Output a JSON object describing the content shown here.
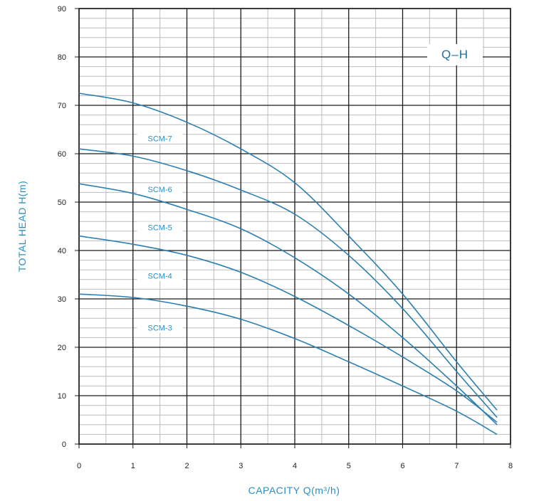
{
  "chart_data": {
    "type": "line",
    "tag": "Q–H",
    "xlabel": "CAPACITY Q(m³/h)",
    "ylabel": "TOTAL HEAD H(m)",
    "xlim": [
      0,
      8
    ],
    "ylim": [
      0,
      90
    ],
    "xticks": [
      0,
      1,
      2,
      3,
      4,
      5,
      6,
      7,
      8
    ],
    "yticks": [
      0,
      10,
      20,
      30,
      40,
      50,
      60,
      70,
      80,
      90
    ],
    "grid": true,
    "series": [
      {
        "name": "SCM-7",
        "label_x": 1.5,
        "x": [
          0,
          1,
          2,
          3,
          4,
          5,
          6,
          7,
          7.75
        ],
        "y": [
          72.5,
          70.5,
          66.5,
          61,
          54,
          43,
          31,
          17,
          7
        ]
      },
      {
        "name": "SCM-6",
        "label_x": 1.5,
        "x": [
          0,
          1,
          2,
          3,
          4,
          5,
          6,
          7,
          7.75
        ],
        "y": [
          61,
          59.5,
          56.5,
          52.5,
          47.5,
          39,
          28,
          15,
          5.5
        ]
      },
      {
        "name": "SCM-5",
        "label_x": 1.5,
        "x": [
          0,
          1,
          2,
          3,
          4,
          5,
          6,
          7,
          7.75
        ],
        "y": [
          53.8,
          51.8,
          48.5,
          44.5,
          38.5,
          31,
          22,
          12,
          4
        ]
      },
      {
        "name": "SCM-4",
        "label_x": 1.5,
        "x": [
          0,
          1,
          2,
          3,
          4,
          5,
          6,
          7,
          7.75
        ],
        "y": [
          43,
          41.3,
          39,
          35.5,
          30.5,
          24.5,
          18,
          11,
          4.5
        ]
      },
      {
        "name": "SCM-3",
        "label_x": 1.5,
        "x": [
          0,
          1,
          2,
          3,
          4,
          5,
          6,
          7,
          7.75
        ],
        "y": [
          31,
          30.3,
          28.5,
          25.8,
          21.8,
          17,
          12,
          6.8,
          2
        ]
      }
    ]
  },
  "colors": {
    "curve": "#2b7fb0",
    "accent_text": "#2c8fc4",
    "tag_text": "#1f6f9a",
    "major_grid": "#1a1a1a",
    "minor_grid": "#bdbdbd"
  }
}
